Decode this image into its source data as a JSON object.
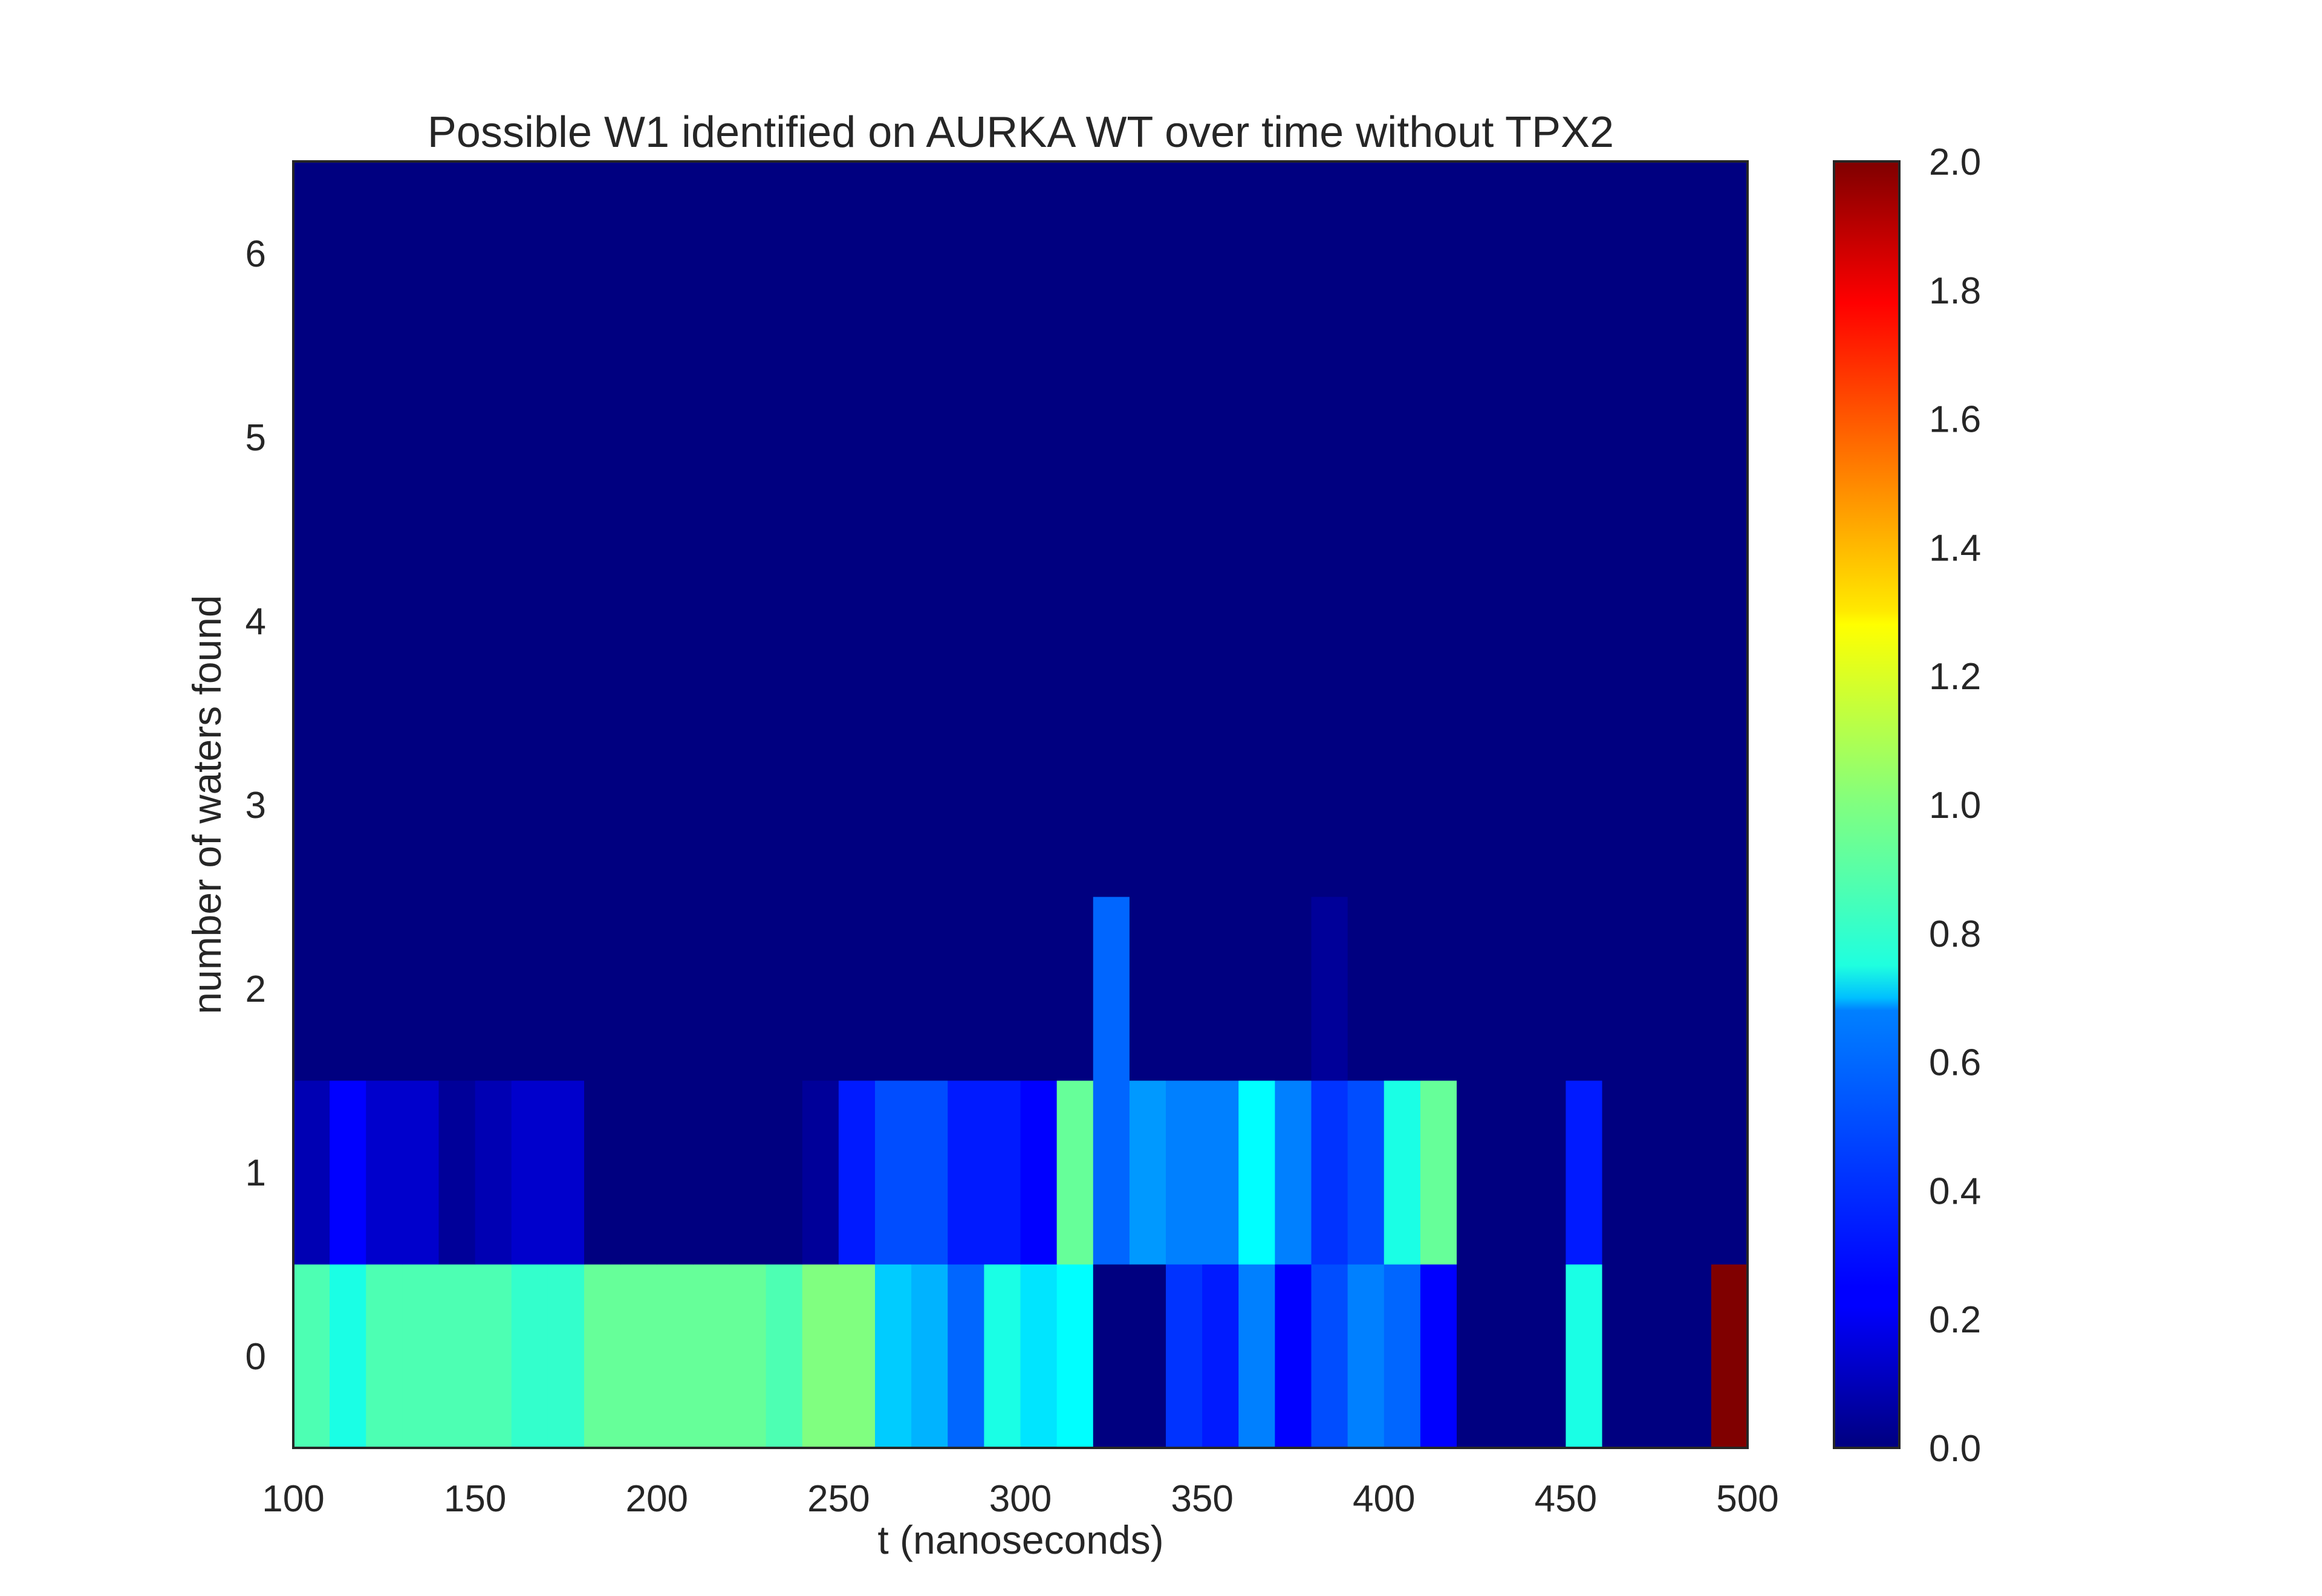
{
  "chart_data": {
    "type": "heatmap",
    "title": "Possible W1 identified on AURKA WT over time without TPX2",
    "xlabel": "t (nanoseconds)",
    "ylabel": "number of waters found",
    "xlim": [
      100,
      500
    ],
    "ylim": [
      -0.5,
      6.5
    ],
    "x_ticks": [
      "100",
      "150",
      "200",
      "250",
      "300",
      "350",
      "400",
      "450",
      "500"
    ],
    "y_ticks": [
      "0",
      "1",
      "2",
      "3",
      "4",
      "5",
      "6"
    ],
    "x_bin_edges": [
      100,
      110,
      120,
      130,
      140,
      150,
      160,
      170,
      180,
      190,
      200,
      210,
      220,
      230,
      240,
      250,
      260,
      270,
      280,
      290,
      300,
      310,
      320,
      330,
      340,
      350,
      360,
      370,
      380,
      390,
      400,
      410,
      420,
      430,
      440,
      450,
      460,
      470,
      480,
      490,
      500
    ],
    "y_bin_edges": [
      -0.5,
      0.5,
      1.5,
      2.5,
      3.5,
      4.5,
      5.5,
      6.5
    ],
    "y_categories": [
      0,
      1,
      2,
      3,
      4,
      5,
      6
    ],
    "values": [
      [
        0.9,
        0.8,
        0.9,
        0.9,
        0.9,
        0.9,
        0.85,
        0.85,
        0.95,
        0.95,
        0.95,
        0.95,
        0.95,
        0.9,
        1.0,
        1.0,
        0.65,
        0.6,
        0.45,
        0.8,
        0.7,
        0.75,
        0.0,
        0.0,
        0.35,
        0.3,
        0.5,
        0.25,
        0.4,
        0.5,
        0.45,
        0.25,
        0.0,
        0.0,
        0.0,
        0.8,
        0.0,
        0.0,
        0.0,
        2.0
      ],
      [
        0.1,
        0.25,
        0.15,
        0.15,
        0.05,
        0.1,
        0.15,
        0.15,
        0.0,
        0.0,
        0.0,
        0.0,
        0.0,
        0.0,
        0.05,
        0.3,
        0.4,
        0.4,
        0.3,
        0.3,
        0.25,
        0.95,
        0.45,
        0.55,
        0.5,
        0.5,
        0.75,
        0.5,
        0.35,
        0.4,
        0.8,
        0.95,
        0.0,
        0.0,
        0.0,
        0.3,
        0.0,
        0.0,
        0.0,
        0.0
      ],
      [
        0.0,
        0.0,
        0.0,
        0.0,
        0.0,
        0.0,
        0.0,
        0.0,
        0.0,
        0.0,
        0.0,
        0.0,
        0.0,
        0.0,
        0.0,
        0.0,
        0.0,
        0.0,
        0.0,
        0.0,
        0.0,
        0.0,
        0.45,
        0.0,
        0.0,
        0.0,
        0.0,
        0.0,
        0.05,
        0.0,
        0.0,
        0.0,
        0.0,
        0.0,
        0.0,
        0.0,
        0.0,
        0.0,
        0.0,
        0.0
      ],
      [
        0.0,
        0.0,
        0.0,
        0.0,
        0.0,
        0.0,
        0.0,
        0.0,
        0.0,
        0.0,
        0.0,
        0.0,
        0.0,
        0.0,
        0.0,
        0.0,
        0.0,
        0.0,
        0.0,
        0.0,
        0.0,
        0.0,
        0.0,
        0.0,
        0.0,
        0.0,
        0.0,
        0.0,
        0.0,
        0.0,
        0.0,
        0.0,
        0.0,
        0.0,
        0.0,
        0.0,
        0.0,
        0.0,
        0.0,
        0.0
      ],
      [
        0.0,
        0.0,
        0.0,
        0.0,
        0.0,
        0.0,
        0.0,
        0.0,
        0.0,
        0.0,
        0.0,
        0.0,
        0.0,
        0.0,
        0.0,
        0.0,
        0.0,
        0.0,
        0.0,
        0.0,
        0.0,
        0.0,
        0.0,
        0.0,
        0.0,
        0.0,
        0.0,
        0.0,
        0.0,
        0.0,
        0.0,
        0.0,
        0.0,
        0.0,
        0.0,
        0.0,
        0.0,
        0.0,
        0.0,
        0.0
      ],
      [
        0.0,
        0.0,
        0.0,
        0.0,
        0.0,
        0.0,
        0.0,
        0.0,
        0.0,
        0.0,
        0.0,
        0.0,
        0.0,
        0.0,
        0.0,
        0.0,
        0.0,
        0.0,
        0.0,
        0.0,
        0.0,
        0.0,
        0.0,
        0.0,
        0.0,
        0.0,
        0.0,
        0.0,
        0.0,
        0.0,
        0.0,
        0.0,
        0.0,
        0.0,
        0.0,
        0.0,
        0.0,
        0.0,
        0.0,
        0.0
      ],
      [
        0.0,
        0.0,
        0.0,
        0.0,
        0.0,
        0.0,
        0.0,
        0.0,
        0.0,
        0.0,
        0.0,
        0.0,
        0.0,
        0.0,
        0.0,
        0.0,
        0.0,
        0.0,
        0.0,
        0.0,
        0.0,
        0.0,
        0.0,
        0.0,
        0.0,
        0.0,
        0.0,
        0.0,
        0.0,
        0.0,
        0.0,
        0.0,
        0.0,
        0.0,
        0.0,
        0.0,
        0.0,
        0.0,
        0.0,
        0.0
      ]
    ],
    "colormap": "jet",
    "colorbar": {
      "range": [
        0.0,
        2.0
      ],
      "ticks": [
        "0.0",
        "0.2",
        "0.4",
        "0.6",
        "0.8",
        "1.0",
        "1.2",
        "1.4",
        "1.6",
        "1.8",
        "2.0"
      ]
    },
    "grid": false,
    "legend": "colorbar right"
  }
}
